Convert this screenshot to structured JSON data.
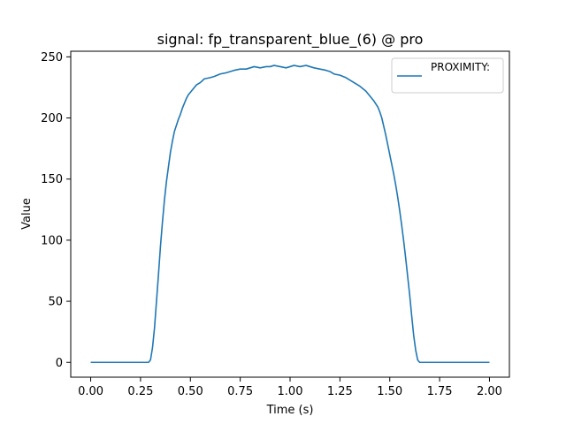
{
  "chart_data": {
    "type": "line",
    "title": "signal: fp_transparent_blue_(6) @ pro",
    "xlabel": "Time (s)",
    "ylabel": "Value",
    "xlim": [
      -0.1,
      2.1
    ],
    "ylim": [
      -12.1,
      254.6
    ],
    "xticks": [
      0.0,
      0.25,
      0.5,
      0.75,
      1.0,
      1.25,
      1.5,
      1.75,
      2.0
    ],
    "xtick_labels": [
      "0.00",
      "0.25",
      "0.50",
      "0.75",
      "1.00",
      "1.25",
      "1.50",
      "1.75",
      "2.00"
    ],
    "yticks": [
      0,
      50,
      100,
      150,
      200,
      250
    ],
    "ytick_labels": [
      "0",
      "50",
      "100",
      "150",
      "200",
      "250"
    ],
    "grid": false,
    "legend_position": "top-right",
    "series": [
      {
        "name": "PROXIMITY:",
        "color": "#1f77b4",
        "x": [
          0.0,
          0.05,
          0.1,
          0.15,
          0.2,
          0.25,
          0.29,
          0.3,
          0.31,
          0.32,
          0.33,
          0.34,
          0.35,
          0.36,
          0.37,
          0.38,
          0.39,
          0.4,
          0.41,
          0.42,
          0.43,
          0.44,
          0.45,
          0.46,
          0.47,
          0.48,
          0.49,
          0.5,
          0.51,
          0.52,
          0.53,
          0.55,
          0.57,
          0.6,
          0.62,
          0.65,
          0.68,
          0.7,
          0.72,
          0.75,
          0.78,
          0.8,
          0.82,
          0.85,
          0.88,
          0.9,
          0.92,
          0.95,
          0.98,
          1.0,
          1.02,
          1.05,
          1.08,
          1.1,
          1.12,
          1.15,
          1.18,
          1.2,
          1.22,
          1.25,
          1.28,
          1.3,
          1.32,
          1.35,
          1.38,
          1.4,
          1.42,
          1.44,
          1.45,
          1.46,
          1.47,
          1.48,
          1.49,
          1.5,
          1.51,
          1.52,
          1.53,
          1.54,
          1.55,
          1.56,
          1.57,
          1.58,
          1.59,
          1.6,
          1.61,
          1.62,
          1.63,
          1.64,
          1.65,
          1.7,
          1.75,
          1.8,
          1.85,
          1.9,
          1.95,
          2.0
        ],
        "y": [
          0,
          0,
          0,
          0,
          0,
          0,
          0,
          2,
          12,
          28,
          50,
          72,
          95,
          115,
          133,
          148,
          160,
          172,
          181,
          189,
          194,
          199,
          203,
          208,
          212,
          216,
          219,
          221,
          223,
          225,
          227,
          229,
          232,
          233,
          234,
          236,
          237,
          238,
          239,
          240,
          240,
          241,
          242,
          241,
          242,
          242,
          243,
          242,
          241,
          242,
          243,
          242,
          243,
          242,
          241,
          240,
          239,
          238,
          236,
          235,
          233,
          231,
          229,
          226,
          222,
          218,
          214,
          209,
          205,
          200,
          193,
          186,
          178,
          170,
          162,
          154,
          145,
          135,
          124,
          112,
          99,
          85,
          70,
          55,
          38,
          22,
          10,
          2,
          0,
          0,
          0,
          0,
          0,
          0,
          0,
          0
        ]
      }
    ]
  }
}
